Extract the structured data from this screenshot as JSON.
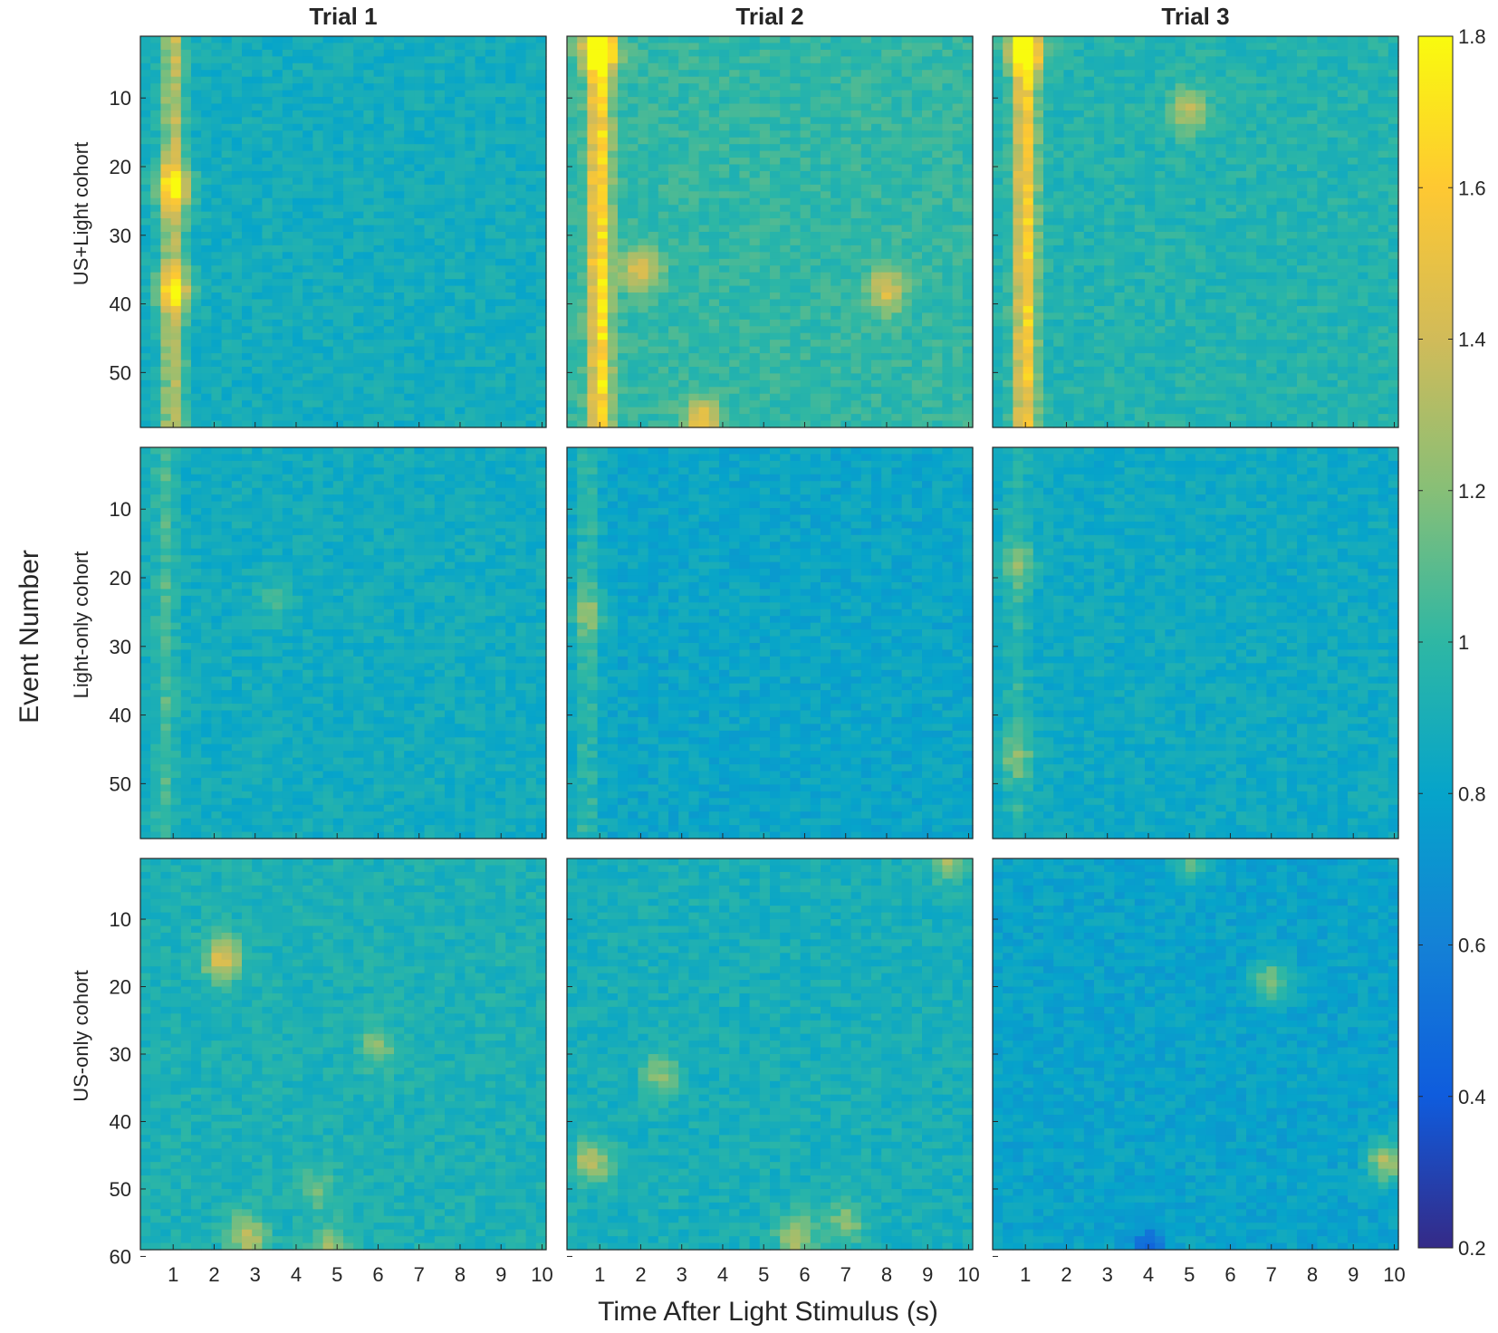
{
  "chart_data": {
    "type": "heatmap",
    "column_titles": [
      "Trial 1",
      "Trial 2",
      "Trial 3"
    ],
    "row_labels": [
      "US+Light cohort",
      "Light-only cohort",
      "US-only cohort"
    ],
    "ylabel": "Event Number",
    "xlabel": "Time After Light Stimulus (s)",
    "x_ticks": [
      "1",
      "2",
      "3",
      "4",
      "5",
      "6",
      "7",
      "8",
      "9",
      "10"
    ],
    "x_range": [
      0.2,
      10.1
    ],
    "y_ticks_rows_1_2": [
      "10",
      "20",
      "30",
      "40",
      "50"
    ],
    "y_ticks_row_3": [
      "10",
      "20",
      "30",
      "40",
      "50",
      "60"
    ],
    "y_range_rows_1_2": [
      1,
      58
    ],
    "y_range_row_3": [
      1,
      59
    ],
    "colorbar": {
      "colormap": "parula",
      "range": [
        0.2,
        1.8
      ],
      "ticks": [
        "0.2",
        "0.4",
        "0.6",
        "0.8",
        "1",
        "1.2",
        "1.4",
        "1.6",
        "1.8"
      ]
    },
    "panels": [
      {
        "row": "US+Light cohort",
        "trial": "Trial 1",
        "base": 0.88,
        "onset_time": 1.0,
        "onset_peak": 1.35,
        "hot_spots": [
          {
            "t": 1.0,
            "event": 23,
            "value": 1.45
          },
          {
            "t": 1.0,
            "event": 38,
            "value": 1.4
          }
        ]
      },
      {
        "row": "US+Light cohort",
        "trial": "Trial 2",
        "base": 1.0,
        "onset_time": 1.0,
        "onset_peak": 1.68,
        "hot_spots": [
          {
            "t": 1.0,
            "event": 3,
            "value": 1.8
          },
          {
            "t": 2.0,
            "event": 35,
            "value": 1.5
          },
          {
            "t": 8.0,
            "event": 38,
            "value": 1.45
          },
          {
            "t": 3.5,
            "event": 57,
            "value": 1.55
          }
        ]
      },
      {
        "row": "US+Light cohort",
        "trial": "Trial 3",
        "base": 0.95,
        "onset_time": 1.0,
        "onset_peak": 1.6,
        "hot_spots": [
          {
            "t": 1.0,
            "event": 3,
            "value": 1.7
          },
          {
            "t": 5.0,
            "event": 12,
            "value": 1.35
          }
        ]
      },
      {
        "row": "Light-only cohort",
        "trial": "Trial 1",
        "base": 0.87,
        "onset_time": 0.8,
        "onset_peak": 1.05,
        "hot_spots": [
          {
            "t": 3.5,
            "event": 23,
            "value": 1.05
          }
        ]
      },
      {
        "row": "Light-only cohort",
        "trial": "Trial 2",
        "base": 0.82,
        "onset_time": 0.7,
        "onset_peak": 1.0,
        "hot_spots": [
          {
            "t": 0.7,
            "event": 25,
            "value": 1.1
          }
        ]
      },
      {
        "row": "Light-only cohort",
        "trial": "Trial 3",
        "base": 0.85,
        "onset_time": 0.8,
        "onset_peak": 0.98,
        "hot_spots": [
          {
            "t": 0.8,
            "event": 18,
            "value": 1.12
          },
          {
            "t": 0.8,
            "event": 46,
            "value": 1.1
          }
        ]
      },
      {
        "row": "US-only cohort",
        "trial": "Trial 1",
        "base": 0.92,
        "onset_time": 0.0,
        "onset_peak": 0.0,
        "hot_spots": [
          {
            "t": 2.2,
            "event": 16,
            "value": 1.45
          },
          {
            "t": 2.8,
            "event": 57,
            "value": 1.35
          },
          {
            "t": 4.8,
            "event": 59,
            "value": 1.3
          },
          {
            "t": 6.0,
            "event": 29,
            "value": 1.2
          },
          {
            "t": 4.5,
            "event": 50,
            "value": 1.15
          }
        ]
      },
      {
        "row": "US-only cohort",
        "trial": "Trial 2",
        "base": 0.9,
        "onset_time": 0.0,
        "onset_peak": 0.0,
        "hot_spots": [
          {
            "t": 0.8,
            "event": 46,
            "value": 1.35
          },
          {
            "t": 5.8,
            "event": 57,
            "value": 1.35
          },
          {
            "t": 9.5,
            "event": 1,
            "value": 1.3
          },
          {
            "t": 2.5,
            "event": 33,
            "value": 1.2
          },
          {
            "t": 7.0,
            "event": 55,
            "value": 1.2
          }
        ]
      },
      {
        "row": "US-only cohort",
        "trial": "Trial 3",
        "base": 0.8,
        "onset_time": 0.0,
        "onset_peak": 0.0,
        "hot_spots": [
          {
            "t": 9.8,
            "event": 46,
            "value": 1.3
          },
          {
            "t": 7.0,
            "event": 19,
            "value": 1.15
          },
          {
            "t": 5.0,
            "event": 1,
            "value": 1.1
          },
          {
            "t": 4.0,
            "event": 59,
            "value": 0.45
          }
        ]
      }
    ]
  }
}
